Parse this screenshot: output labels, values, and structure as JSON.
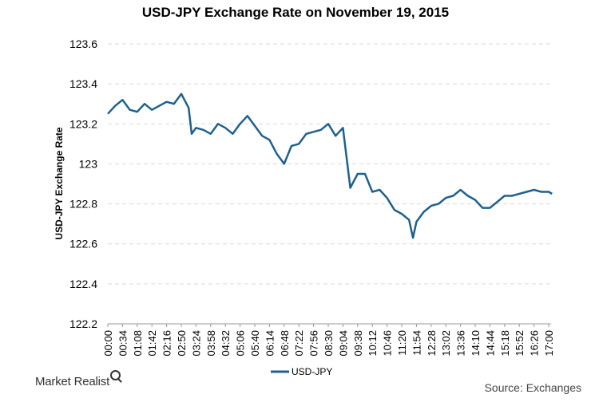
{
  "chart_data": {
    "type": "line",
    "title": "USD-JPY Exchange Rate on November 19, 2015",
    "ylabel": "USD-JPY Exchange Rate",
    "xlabel": "",
    "ylim": [
      122.2,
      123.6
    ],
    "yticks": [
      "123.6",
      "123.4",
      "123.2",
      "123",
      "122.8",
      "122.6",
      "122.4",
      "122.2"
    ],
    "xticks": [
      "00:00",
      "00:34",
      "01:08",
      "01:42",
      "02:16",
      "02:50",
      "03:24",
      "03:58",
      "04:32",
      "05:06",
      "05:40",
      "06:14",
      "06:48",
      "07:22",
      "07:56",
      "08:30",
      "09:04",
      "09:38",
      "10:12",
      "10:46",
      "11:20",
      "11:54",
      "12:28",
      "13:02",
      "13:36",
      "14:10",
      "14:44",
      "15:18",
      "15:52",
      "16:26",
      "17:00"
    ],
    "grid": "horizontal",
    "legend": "bottom",
    "series": [
      {
        "name": "USD-JPY",
        "color": "#1f618d",
        "x": [
          "00:00",
          "00:17",
          "00:34",
          "00:51",
          "01:08",
          "01:25",
          "01:42",
          "01:59",
          "02:16",
          "02:33",
          "02:50",
          "03:07",
          "03:14",
          "03:24",
          "03:41",
          "03:58",
          "04:15",
          "04:32",
          "04:49",
          "05:06",
          "05:23",
          "05:40",
          "05:57",
          "06:14",
          "06:31",
          "06:48",
          "07:05",
          "07:22",
          "07:39",
          "07:56",
          "08:13",
          "08:30",
          "08:47",
          "09:04",
          "09:12",
          "09:21",
          "09:38",
          "09:55",
          "10:12",
          "10:29",
          "10:46",
          "11:03",
          "11:20",
          "11:37",
          "11:46",
          "11:54",
          "12:11",
          "12:28",
          "12:45",
          "13:02",
          "13:19",
          "13:36",
          "13:53",
          "14:10",
          "14:27",
          "14:44",
          "15:01",
          "15:18",
          "15:35",
          "15:52",
          "16:09",
          "16:26",
          "16:43",
          "17:00",
          "17:08"
        ],
        "values": [
          123.25,
          123.29,
          123.32,
          123.27,
          123.26,
          123.3,
          123.27,
          123.29,
          123.31,
          123.3,
          123.35,
          123.28,
          123.15,
          123.18,
          123.17,
          123.15,
          123.2,
          123.18,
          123.15,
          123.2,
          123.24,
          123.19,
          123.14,
          123.12,
          123.05,
          123.0,
          123.09,
          123.1,
          123.15,
          123.16,
          123.17,
          123.2,
          123.14,
          123.18,
          123.04,
          122.88,
          122.95,
          122.95,
          122.86,
          122.87,
          122.83,
          122.77,
          122.75,
          122.72,
          122.63,
          122.71,
          122.76,
          122.79,
          122.8,
          122.83,
          122.84,
          122.87,
          122.84,
          122.82,
          122.78,
          122.78,
          122.81,
          122.84,
          122.84,
          122.85,
          122.86,
          122.87,
          122.86,
          122.86,
          122.85
        ]
      }
    ],
    "source": "Source: Exchanges"
  },
  "brand": "Market Realist"
}
